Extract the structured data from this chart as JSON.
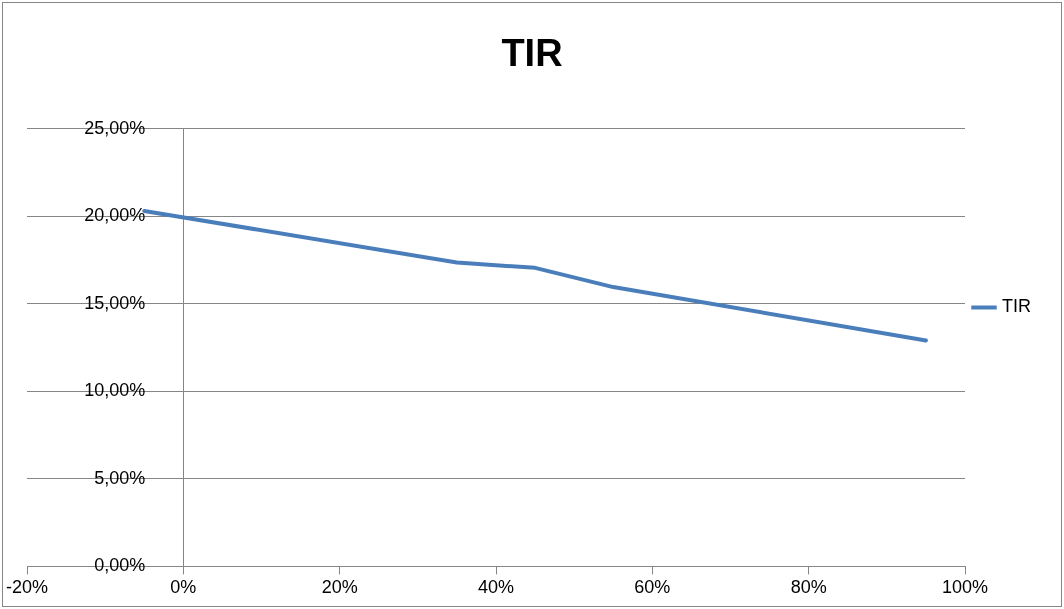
{
  "chart_data": {
    "type": "line",
    "title": "TIR",
    "x": [
      -5,
      35,
      45,
      55,
      95
    ],
    "series": [
      {
        "name": "TIR",
        "color": "#4a7ebb",
        "values": [
          20.3,
          17.35,
          17.05,
          15.95,
          12.9
        ]
      }
    ],
    "xlim": [
      -20,
      100
    ],
    "xticks": [
      {
        "value": -20,
        "label": "-20%"
      },
      {
        "value": 0,
        "label": "0%"
      },
      {
        "value": 20,
        "label": "20%"
      },
      {
        "value": 40,
        "label": "40%"
      },
      {
        "value": 60,
        "label": "60%"
      },
      {
        "value": 80,
        "label": "80%"
      },
      {
        "value": 100,
        "label": "100%"
      }
    ],
    "ylim": [
      0,
      25
    ],
    "yticks": [
      {
        "value": 0,
        "label": "0,00%"
      },
      {
        "value": 5,
        "label": "5,00%"
      },
      {
        "value": 10,
        "label": "10,00%"
      },
      {
        "value": 15,
        "label": "15,00%"
      },
      {
        "value": 20,
        "label": "20,00%"
      },
      {
        "value": 25,
        "label": "25,00%"
      }
    ],
    "grid": "y",
    "legend": "right",
    "marker": "none",
    "line_style": "solid"
  }
}
